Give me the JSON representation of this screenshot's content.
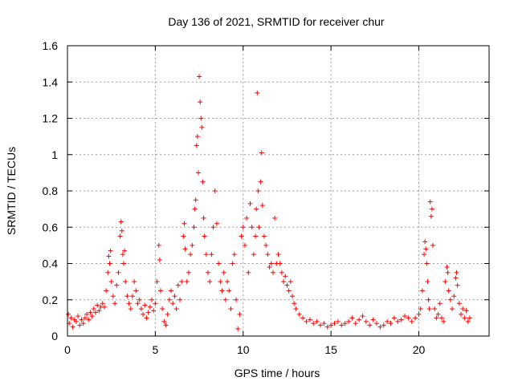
{
  "chart_data": {
    "type": "scatter",
    "title": "Day 136 of 2021, SRMTID for receiver chur",
    "xlabel": "GPS time / hours",
    "ylabel": "SRMTID / TECUs",
    "xlim": [
      0,
      24
    ],
    "ylim": [
      0,
      1.6
    ],
    "xticks": [
      0,
      5,
      10,
      15,
      20
    ],
    "yticks": [
      0,
      0.2,
      0.4,
      0.6,
      0.8,
      1,
      1.2,
      1.4,
      1.6
    ],
    "xtick_labels": [
      "0",
      "5",
      "10",
      "15",
      "20"
    ],
    "ytick_labels": [
      "0",
      "0.2",
      "0.4",
      "0.6",
      "0.8",
      "1",
      "1.2",
      "1.4",
      "1.6"
    ],
    "grid": true,
    "marker": "+",
    "marker_color": "#ff0000",
    "series": [
      {
        "name": "SRMTID",
        "points": [
          [
            0.05,
            0.12
          ],
          [
            0.1,
            0.07
          ],
          [
            0.2,
            0.1
          ],
          [
            0.3,
            0.05
          ],
          [
            0.4,
            0.09
          ],
          [
            0.5,
            0.08
          ],
          [
            0.6,
            0.11
          ],
          [
            0.7,
            0.06
          ],
          [
            0.8,
            0.09
          ],
          [
            0.9,
            0.07
          ],
          [
            1.0,
            0.1
          ],
          [
            1.1,
            0.12
          ],
          [
            1.2,
            0.09
          ],
          [
            1.3,
            0.13
          ],
          [
            1.4,
            0.11
          ],
          [
            1.5,
            0.15
          ],
          [
            1.6,
            0.13
          ],
          [
            1.7,
            0.17
          ],
          [
            1.8,
            0.14
          ],
          [
            1.9,
            0.16
          ],
          [
            2.0,
            0.18
          ],
          [
            2.1,
            0.16
          ],
          [
            2.2,
            0.25
          ],
          [
            2.3,
            0.35
          ],
          [
            2.35,
            0.44
          ],
          [
            2.4,
            0.4
          ],
          [
            2.45,
            0.47
          ],
          [
            2.5,
            0.3
          ],
          [
            2.6,
            0.22
          ],
          [
            2.7,
            0.18
          ],
          [
            2.8,
            0.28
          ],
          [
            2.9,
            0.35
          ],
          [
            3.0,
            0.55
          ],
          [
            3.05,
            0.63
          ],
          [
            3.1,
            0.58
          ],
          [
            3.15,
            0.45
          ],
          [
            3.2,
            0.4
          ],
          [
            3.25,
            0.47
          ],
          [
            3.3,
            0.3
          ],
          [
            3.4,
            0.22
          ],
          [
            3.5,
            0.18
          ],
          [
            3.6,
            0.15
          ],
          [
            3.7,
            0.22
          ],
          [
            3.8,
            0.3
          ],
          [
            3.9,
            0.25
          ],
          [
            4.0,
            0.18
          ],
          [
            4.1,
            0.2
          ],
          [
            4.2,
            0.15
          ],
          [
            4.3,
            0.12
          ],
          [
            4.4,
            0.17
          ],
          [
            4.5,
            0.1
          ],
          [
            4.6,
            0.13
          ],
          [
            4.7,
            0.16
          ],
          [
            4.8,
            0.2
          ],
          [
            4.9,
            0.14
          ],
          [
            5.0,
            0.18
          ],
          [
            5.1,
            0.3
          ],
          [
            5.2,
            0.5
          ],
          [
            5.25,
            0.42
          ],
          [
            5.3,
            0.25
          ],
          [
            5.4,
            0.15
          ],
          [
            5.5,
            0.08
          ],
          [
            5.6,
            0.06
          ],
          [
            5.7,
            0.12
          ],
          [
            5.8,
            0.2
          ],
          [
            5.9,
            0.25
          ],
          [
            6.0,
            0.18
          ],
          [
            6.1,
            0.22
          ],
          [
            6.2,
            0.15
          ],
          [
            6.3,
            0.28
          ],
          [
            6.4,
            0.2
          ],
          [
            6.5,
            0.3
          ],
          [
            6.6,
            0.55
          ],
          [
            6.65,
            0.62
          ],
          [
            6.7,
            0.48
          ],
          [
            6.8,
            0.3
          ],
          [
            6.9,
            0.35
          ],
          [
            7.0,
            0.45
          ],
          [
            7.1,
            0.5
          ],
          [
            7.2,
            0.6
          ],
          [
            7.25,
            0.7
          ],
          [
            7.3,
            0.75
          ],
          [
            7.35,
            1.05
          ],
          [
            7.4,
            1.1
          ],
          [
            7.45,
            0.9
          ],
          [
            7.5,
            1.43
          ],
          [
            7.55,
            1.29
          ],
          [
            7.6,
            1.2
          ],
          [
            7.65,
            1.15
          ],
          [
            7.7,
            0.85
          ],
          [
            7.75,
            0.65
          ],
          [
            7.8,
            0.55
          ],
          [
            7.9,
            0.45
          ],
          [
            8.0,
            0.35
          ],
          [
            8.1,
            0.3
          ],
          [
            8.2,
            0.45
          ],
          [
            8.3,
            0.6
          ],
          [
            8.4,
            0.8
          ],
          [
            8.5,
            0.62
          ],
          [
            8.6,
            0.4
          ],
          [
            8.7,
            0.3
          ],
          [
            8.8,
            0.25
          ],
          [
            8.9,
            0.35
          ],
          [
            9.0,
            0.2
          ],
          [
            9.1,
            0.3
          ],
          [
            9.2,
            0.25
          ],
          [
            9.3,
            0.15
          ],
          [
            9.4,
            0.4
          ],
          [
            9.5,
            0.45
          ],
          [
            9.6,
            0.2
          ],
          [
            9.7,
            0.04
          ],
          [
            9.8,
            0.12
          ],
          [
            9.9,
            0.55
          ],
          [
            10.0,
            0.6
          ],
          [
            10.1,
            0.5
          ],
          [
            10.2,
            0.65
          ],
          [
            10.3,
            0.35
          ],
          [
            10.4,
            0.73
          ],
          [
            10.5,
            0.6
          ],
          [
            10.6,
            0.45
          ],
          [
            10.7,
            0.55
          ],
          [
            10.75,
            0.7
          ],
          [
            10.8,
            1.34
          ],
          [
            10.85,
            0.8
          ],
          [
            10.9,
            0.6
          ],
          [
            11.0,
            0.85
          ],
          [
            11.05,
            1.01
          ],
          [
            11.1,
            0.72
          ],
          [
            11.2,
            0.55
          ],
          [
            11.3,
            0.5
          ],
          [
            11.4,
            0.45
          ],
          [
            11.5,
            0.38
          ],
          [
            11.6,
            0.4
          ],
          [
            11.7,
            0.35
          ],
          [
            11.8,
            0.65
          ],
          [
            11.9,
            0.4
          ],
          [
            12.0,
            0.45
          ],
          [
            12.1,
            0.4
          ],
          [
            12.2,
            0.35
          ],
          [
            12.3,
            0.3
          ],
          [
            12.4,
            0.33
          ],
          [
            12.5,
            0.28
          ],
          [
            12.6,
            0.25
          ],
          [
            12.7,
            0.3
          ],
          [
            12.8,
            0.22
          ],
          [
            12.9,
            0.18
          ],
          [
            13.0,
            0.15
          ],
          [
            13.2,
            0.12
          ],
          [
            13.4,
            0.1
          ],
          [
            13.6,
            0.08
          ],
          [
            13.8,
            0.09
          ],
          [
            14.0,
            0.07
          ],
          [
            14.2,
            0.08
          ],
          [
            14.4,
            0.06
          ],
          [
            14.6,
            0.07
          ],
          [
            14.8,
            0.05
          ],
          [
            15.0,
            0.06
          ],
          [
            15.2,
            0.07
          ],
          [
            15.4,
            0.08
          ],
          [
            15.6,
            0.06
          ],
          [
            15.8,
            0.07
          ],
          [
            16.0,
            0.08
          ],
          [
            16.2,
            0.1
          ],
          [
            16.4,
            0.07
          ],
          [
            16.6,
            0.09
          ],
          [
            16.8,
            0.11
          ],
          [
            17.0,
            0.08
          ],
          [
            17.2,
            0.06
          ],
          [
            17.4,
            0.09
          ],
          [
            17.6,
            0.07
          ],
          [
            17.8,
            0.05
          ],
          [
            18.0,
            0.06
          ],
          [
            18.2,
            0.08
          ],
          [
            18.4,
            0.07
          ],
          [
            18.6,
            0.1
          ],
          [
            18.8,
            0.08
          ],
          [
            19.0,
            0.09
          ],
          [
            19.2,
            0.11
          ],
          [
            19.4,
            0.1
          ],
          [
            19.6,
            0.08
          ],
          [
            19.8,
            0.1
          ],
          [
            20.0,
            0.12
          ],
          [
            20.1,
            0.15
          ],
          [
            20.2,
            0.25
          ],
          [
            20.3,
            0.45
          ],
          [
            20.35,
            0.52
          ],
          [
            20.4,
            0.48
          ],
          [
            20.45,
            0.4
          ],
          [
            20.5,
            0.3
          ],
          [
            20.55,
            0.2
          ],
          [
            20.6,
            0.15
          ],
          [
            20.65,
            0.74
          ],
          [
            20.7,
            0.66
          ],
          [
            20.75,
            0.7
          ],
          [
            20.8,
            0.5
          ],
          [
            20.9,
            0.15
          ],
          [
            21.0,
            0.1
          ],
          [
            21.1,
            0.12
          ],
          [
            21.2,
            0.18
          ],
          [
            21.3,
            0.1
          ],
          [
            21.4,
            0.08
          ],
          [
            21.5,
            0.3
          ],
          [
            21.6,
            0.38
          ],
          [
            21.65,
            0.35
          ],
          [
            21.7,
            0.25
          ],
          [
            21.8,
            0.2
          ],
          [
            21.9,
            0.15
          ],
          [
            22.0,
            0.22
          ],
          [
            22.1,
            0.32
          ],
          [
            22.15,
            0.35
          ],
          [
            22.2,
            0.28
          ],
          [
            22.3,
            0.18
          ],
          [
            22.4,
            0.12
          ],
          [
            22.5,
            0.15
          ],
          [
            22.6,
            0.1
          ],
          [
            22.7,
            0.14
          ],
          [
            22.8,
            0.08
          ],
          [
            22.9,
            0.1
          ]
        ]
      }
    ]
  }
}
